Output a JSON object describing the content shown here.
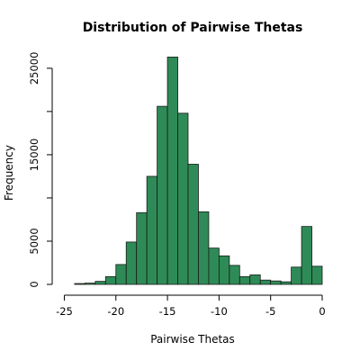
{
  "chart_data": {
    "type": "bar",
    "title": "Distribution of Pairwise Thetas",
    "xlabel": "Pairwise Thetas",
    "ylabel": "Frequency",
    "xlim": [
      -26,
      0
    ],
    "ylim": [
      0,
      25000
    ],
    "x_ticks": [
      -25,
      -20,
      -15,
      -10,
      -5,
      0
    ],
    "x_tick_labels": [
      "-25",
      "-20",
      "-15",
      "-10",
      "-5",
      "0"
    ],
    "y_ticks": [
      0,
      5000,
      10000,
      15000,
      20000,
      25000
    ],
    "y_tick_labels": [
      "0",
      "5000",
      "",
      "15000",
      "",
      "25000"
    ],
    "bar_color": "#2e8b57",
    "bin_width": 1,
    "bin_starts": [
      -24,
      -23,
      -22,
      -21,
      -20,
      -19,
      -18,
      -17,
      -16,
      -15,
      -14,
      -13,
      -12,
      -11,
      -10,
      -9,
      -8,
      -7,
      -6,
      -5,
      -4,
      -3,
      -2,
      -1
    ],
    "values": [
      100,
      150,
      350,
      900,
      2300,
      4900,
      8300,
      12500,
      20600,
      26300,
      19800,
      13900,
      8400,
      4200,
      3300,
      2200,
      900,
      1100,
      500,
      400,
      300,
      2000,
      6700,
      2100
    ]
  }
}
